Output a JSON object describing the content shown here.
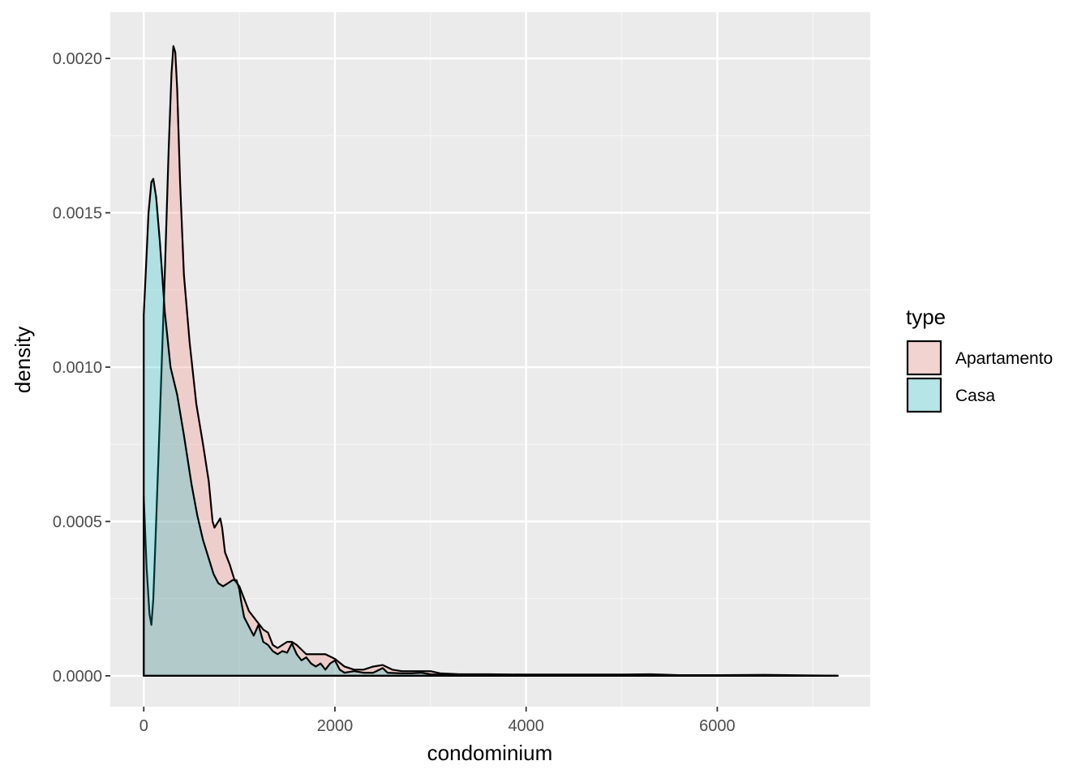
{
  "chart_data": {
    "type": "area",
    "subtype": "density",
    "title": "",
    "xlabel": "condominium",
    "ylabel": "density",
    "xlim": [
      -350,
      7600
    ],
    "ylim": [
      -0.0001,
      0.00215
    ],
    "x_ticks": [
      0,
      2000,
      4000,
      6000
    ],
    "x_tick_labels": [
      "0",
      "2000",
      "4000",
      "6000"
    ],
    "y_ticks": [
      0,
      0.0005,
      0.001,
      0.0015,
      0.002
    ],
    "y_tick_labels": [
      "0.0000",
      "0.0005",
      "0.0010",
      "0.0015",
      "0.0020"
    ],
    "grid": true,
    "legend": {
      "title": "type",
      "position": "right"
    },
    "series": [
      {
        "name": "Apartamento",
        "color": "#F8766D",
        "points": [
          [
            0,
            0.00058
          ],
          [
            30,
            0.00035
          ],
          [
            60,
            0.0002
          ],
          [
            80,
            0.000165
          ],
          [
            100,
            0.00025
          ],
          [
            130,
            0.0005
          ],
          [
            170,
            0.00085
          ],
          [
            220,
            0.0013
          ],
          [
            260,
            0.0017
          ],
          [
            290,
            0.00195
          ],
          [
            310,
            0.00204
          ],
          [
            330,
            0.00202
          ],
          [
            350,
            0.0019
          ],
          [
            380,
            0.0016
          ],
          [
            420,
            0.0013
          ],
          [
            480,
            0.00108
          ],
          [
            550,
            0.00088
          ],
          [
            620,
            0.00075
          ],
          [
            680,
            0.00063
          ],
          [
            720,
            0.0005
          ],
          [
            740,
            0.00048
          ],
          [
            780,
            0.0005
          ],
          [
            800,
            0.00051
          ],
          [
            820,
            0.00048
          ],
          [
            850,
            0.0004
          ],
          [
            900,
            0.00036
          ],
          [
            950,
            0.00031
          ],
          [
            1000,
            0.00029
          ],
          [
            1050,
            0.00025
          ],
          [
            1100,
            0.00021
          ],
          [
            1150,
            0.00019
          ],
          [
            1200,
            0.00017
          ],
          [
            1250,
            0.00015
          ],
          [
            1300,
            0.00014
          ],
          [
            1350,
            0.0001
          ],
          [
            1400,
            9e-05
          ],
          [
            1450,
            0.0001
          ],
          [
            1500,
            0.00011
          ],
          [
            1550,
            0.00011
          ],
          [
            1600,
            0.0001
          ],
          [
            1700,
            7e-05
          ],
          [
            1800,
            7e-05
          ],
          [
            1900,
            7e-05
          ],
          [
            2000,
            5.5e-05
          ],
          [
            2100,
            3e-05
          ],
          [
            2200,
            2e-05
          ],
          [
            2300,
            2e-05
          ],
          [
            2400,
            3e-05
          ],
          [
            2500,
            3.5e-05
          ],
          [
            2600,
            2e-05
          ],
          [
            2700,
            1.5e-05
          ],
          [
            2800,
            1.5e-05
          ],
          [
            2900,
            1.5e-05
          ],
          [
            3000,
            1.5e-05
          ],
          [
            3100,
            8e-06
          ],
          [
            3300,
            5e-06
          ],
          [
            3600,
            5e-06
          ],
          [
            4000,
            4e-06
          ],
          [
            4500,
            4e-06
          ],
          [
            5000,
            4e-06
          ],
          [
            5300,
            5e-06
          ],
          [
            5600,
            2e-06
          ],
          [
            6000,
            2e-06
          ],
          [
            6500,
            3e-06
          ],
          [
            7000,
            1e-06
          ],
          [
            7260,
            5e-07
          ]
        ]
      },
      {
        "name": "Casa",
        "color": "#00BFC4",
        "points": [
          [
            0,
            0.00117
          ],
          [
            20,
            0.0013
          ],
          [
            50,
            0.0015
          ],
          [
            80,
            0.0016
          ],
          [
            100,
            0.00161
          ],
          [
            130,
            0.00155
          ],
          [
            170,
            0.0014
          ],
          [
            220,
            0.00118
          ],
          [
            280,
            0.001
          ],
          [
            350,
            0.00091
          ],
          [
            420,
            0.00078
          ],
          [
            500,
            0.00062
          ],
          [
            560,
            0.00052
          ],
          [
            620,
            0.00044
          ],
          [
            680,
            0.00038
          ],
          [
            730,
            0.00033
          ],
          [
            780,
            0.0003
          ],
          [
            830,
            0.00029
          ],
          [
            880,
            0.0003
          ],
          [
            930,
            0.00031
          ],
          [
            970,
            0.00031
          ],
          [
            1000,
            0.00028
          ],
          [
            1020,
            0.00024
          ],
          [
            1050,
            0.00019
          ],
          [
            1100,
            0.00016
          ],
          [
            1150,
            0.00013
          ],
          [
            1200,
            0.000165
          ],
          [
            1250,
            0.00011
          ],
          [
            1300,
            0.0001
          ],
          [
            1350,
            8e-05
          ],
          [
            1400,
            7e-05
          ],
          [
            1450,
            8e-05
          ],
          [
            1500,
            7.5e-05
          ],
          [
            1550,
            0.000105
          ],
          [
            1600,
            7e-05
          ],
          [
            1650,
            5e-05
          ],
          [
            1700,
            6e-05
          ],
          [
            1750,
            4e-05
          ],
          [
            1800,
            3e-05
          ],
          [
            1850,
            4e-05
          ],
          [
            1900,
            2e-05
          ],
          [
            1950,
            4e-05
          ],
          [
            2000,
            5e-05
          ],
          [
            2050,
            2e-05
          ],
          [
            2100,
            1e-05
          ],
          [
            2200,
            1.5e-05
          ],
          [
            2300,
            1e-05
          ],
          [
            2400,
            1e-05
          ],
          [
            2500,
            2.5e-05
          ],
          [
            2550,
            1e-05
          ],
          [
            2700,
            8e-06
          ],
          [
            2800,
            8e-06
          ],
          [
            2900,
            1e-05
          ],
          [
            3000,
            5e-06
          ],
          [
            3200,
            2e-06
          ],
          [
            3500,
            1e-06
          ],
          [
            4000,
            1e-06
          ],
          [
            5000,
            5e-07
          ],
          [
            6000,
            3e-07
          ],
          [
            7000,
            2e-07
          ],
          [
            7260,
            1e-07
          ]
        ]
      }
    ]
  }
}
